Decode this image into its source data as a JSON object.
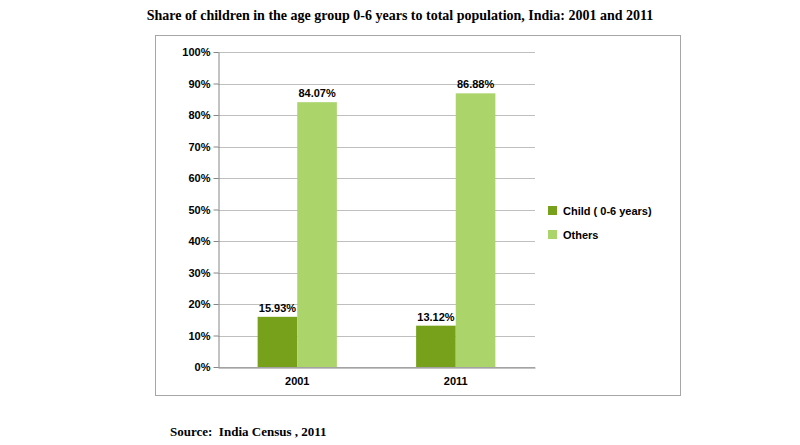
{
  "chart_data": {
    "type": "bar",
    "title": "Share of children in the age group 0-6 years to total population, India: 2001 and 2011",
    "source": "Source:  India Census , 2011",
    "categories": [
      "2001",
      "2011"
    ],
    "series": [
      {
        "name": "Child ( 0-6 years)",
        "color": "#77a11b",
        "values": [
          15.93,
          13.12
        ],
        "value_labels": [
          "15.93%",
          "13.12%"
        ]
      },
      {
        "name": "Others",
        "color": "#abd46b",
        "values": [
          84.07,
          86.88
        ],
        "value_labels": [
          "84.07%",
          "86.88%"
        ]
      }
    ],
    "ylim": [
      0,
      100
    ],
    "yticks": [
      {
        "value": 0,
        "label": "0%"
      },
      {
        "value": 10,
        "label": "10%"
      },
      {
        "value": 20,
        "label": "20%"
      },
      {
        "value": 30,
        "label": "30%"
      },
      {
        "value": 40,
        "label": "40%"
      },
      {
        "value": 50,
        "label": "50%"
      },
      {
        "value": 60,
        "label": "60%"
      },
      {
        "value": 70,
        "label": "70%"
      },
      {
        "value": 80,
        "label": "80%"
      },
      {
        "value": 90,
        "label": "90%"
      },
      {
        "value": 100,
        "label": "100%"
      }
    ],
    "grid": true,
    "legend": "right",
    "data_labels": true
  }
}
